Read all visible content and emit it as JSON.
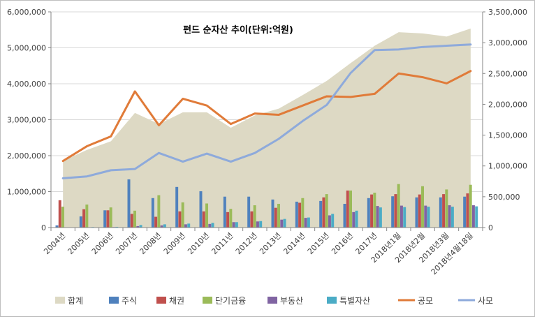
{
  "chart_data": {
    "type": "combo",
    "title": "펀드 순자산 추이(단위:억원)",
    "categories": [
      "2004년",
      "2005년",
      "2006년",
      "2007년",
      "2008년",
      "2009년",
      "2010년",
      "2011년",
      "2012년",
      "2013년",
      "2014년",
      "2015년",
      "2016년",
      "2017년",
      "2018년1월",
      "2018년2월",
      "2018년3월",
      "2018년4월18일"
    ],
    "left_axis": {
      "min": 0,
      "max": 6000000,
      "step": 1000000,
      "ticks": [
        "0",
        "1,000,000",
        "2,000,000",
        "3,000,000",
        "4,000,000",
        "5,000,000",
        "6,000,000"
      ]
    },
    "right_axis": {
      "min": 0,
      "max": 3500000,
      "step": 500000,
      "ticks": [
        "0",
        "500,000",
        "1,000,000",
        "1,500,000",
        "2,000,000",
        "2,500,000",
        "3,000,000",
        "3,500,000"
      ]
    },
    "area": {
      "name": "합계",
      "axis": "right",
      "color": "#ddd9c4",
      "values": [
        1080000,
        1260000,
        1400000,
        1860000,
        1680000,
        1870000,
        1870000,
        1620000,
        1820000,
        1930000,
        2150000,
        2380000,
        2670000,
        2950000,
        3170000,
        3150000,
        3100000,
        3230000
      ]
    },
    "bars": [
      {
        "name": "주식",
        "color": "#4f81bd",
        "values": [
          60000,
          310000,
          480000,
          1340000,
          820000,
          1130000,
          1010000,
          860000,
          860000,
          780000,
          720000,
          740000,
          660000,
          820000,
          870000,
          840000,
          840000,
          860000
        ]
      },
      {
        "name": "채권",
        "color": "#c0504d",
        "values": [
          760000,
          510000,
          480000,
          380000,
          300000,
          450000,
          450000,
          430000,
          450000,
          550000,
          690000,
          840000,
          1030000,
          920000,
          930000,
          920000,
          930000,
          950000
        ]
      },
      {
        "name": "단기금융",
        "color": "#9bbb59",
        "values": [
          580000,
          640000,
          560000,
          470000,
          900000,
          700000,
          670000,
          520000,
          620000,
          660000,
          820000,
          930000,
          1030000,
          970000,
          1210000,
          1150000,
          1060000,
          1190000
        ]
      },
      {
        "name": "부동산",
        "color": "#8064a2",
        "values": [
          8000,
          10000,
          15000,
          40000,
          60000,
          90000,
          100000,
          150000,
          170000,
          220000,
          270000,
          340000,
          430000,
          600000,
          610000,
          610000,
          620000,
          620000
        ]
      },
      {
        "name": "특별자산",
        "color": "#4bacc6",
        "values": [
          5000,
          15000,
          20000,
          70000,
          90000,
          110000,
          130000,
          150000,
          180000,
          240000,
          280000,
          380000,
          470000,
          560000,
          570000,
          580000,
          580000,
          590000
        ]
      }
    ],
    "lines": [
      {
        "name": "공모",
        "axis": "right",
        "color": "#e07b39",
        "values": [
          1080000,
          1320000,
          1480000,
          2210000,
          1660000,
          2090000,
          1980000,
          1680000,
          1850000,
          1830000,
          1980000,
          2130000,
          2120000,
          2170000,
          2500000,
          2440000,
          2340000,
          2540000
        ]
      },
      {
        "name": "사모",
        "axis": "right",
        "color": "#8eaadb",
        "values": [
          800000,
          830000,
          930000,
          950000,
          1210000,
          1070000,
          1200000,
          1070000,
          1210000,
          1440000,
          1730000,
          1990000,
          2510000,
          2880000,
          2890000,
          2930000,
          2950000,
          2970000
        ]
      }
    ],
    "legend_position": "bottom",
    "grid": true
  }
}
